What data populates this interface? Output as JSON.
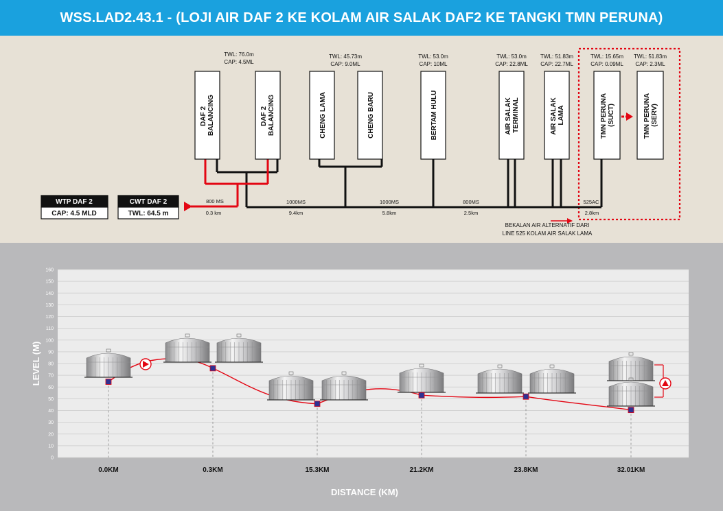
{
  "header": {
    "title": "WSS.LAD2.43.1 - (LOJI AIR DAF 2 KE KOLAM AIR SALAK DAF2 KE TANGKI TMN PERUNA)"
  },
  "source": {
    "wtp": {
      "name": "WTP DAF 2",
      "cap": "CAP: 4.5 MLD"
    },
    "cwt": {
      "name": "CWT DAF 2",
      "twl": "TWL: 64.5 m"
    }
  },
  "tanks": [
    {
      "name": "DAF 2 BALANCING",
      "twl": "TWL: 76.0m",
      "cap": "CAP: 4.5ML"
    },
    {
      "name": "DAF 2 BALANCING"
    },
    {
      "name": "CHENG LAMA",
      "twl": "TWL: 45.73m",
      "cap": "CAP: 9.0ML"
    },
    {
      "name": "CHENG BARU"
    },
    {
      "name": "BERTAM HULU",
      "twl": "TWL: 53.0m",
      "cap": "CAP: 10ML"
    },
    {
      "name": "AIR SALAK TERMINAL",
      "twl": "TWL: 53.0m",
      "cap": "CAP: 22.8ML"
    },
    {
      "name": "AIR SALAK LAMA",
      "twl": "TWL: 51.83m",
      "cap": "CAP: 22.7ML"
    },
    {
      "name": "TMN PERUNA (SUCT)",
      "twl": "TWL: 15.65m",
      "cap": "CAP: 0.09ML"
    },
    {
      "name": "TMN PERUNA (SERV)",
      "twl": "TWL: 51.83m",
      "cap": "CAP: 2.3ML"
    }
  ],
  "pipes": [
    {
      "size": "800 MS",
      "length": "0.3 km"
    },
    {
      "size": "1000MS",
      "length": "9.4km"
    },
    {
      "size": "1000MS",
      "length": "5.8km"
    },
    {
      "size": "800MS",
      "length": "2.5km"
    },
    {
      "size": "525AC",
      "length": "2.8km"
    }
  ],
  "alternative_note": [
    "BEKALAN AIR ALTERNATIF DARI",
    "LINE 525 KOLAM AIR SALAK LAMA"
  ],
  "chart_data": {
    "type": "line",
    "ylabel": "LEVEL (M)",
    "xlabel": "DISTANCE (KM)",
    "ylim": [
      0,
      160
    ],
    "yticks": [
      0,
      10,
      20,
      30,
      40,
      50,
      60,
      70,
      80,
      90,
      100,
      110,
      120,
      130,
      140,
      150,
      160
    ],
    "categories": [
      "0.0KM",
      "0.3KM",
      "15.3KM",
      "21.2KM",
      "23.8KM",
      "32.01KM"
    ],
    "values": [
      64.5,
      76.0,
      45.73,
      53.0,
      51.83,
      40.5
    ],
    "grid": true
  },
  "colors": {
    "header": "#1aa1de",
    "pipe_red": "#e30613",
    "marker": "#2e3192",
    "schematic_bg": "#e7e1d6"
  }
}
